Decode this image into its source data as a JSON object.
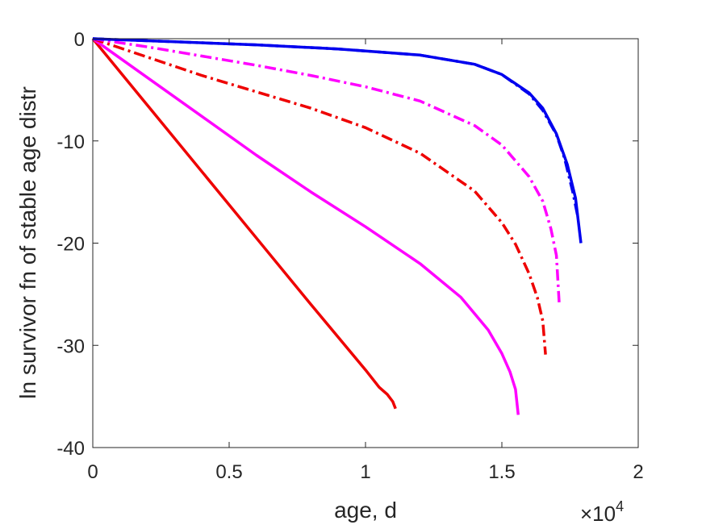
{
  "chart_data": {
    "type": "line",
    "title": "",
    "xlabel": "age, d",
    "ylabel": "ln survivor fn of stable age distr",
    "x_exponent_base": "×10",
    "x_exponent_power": "4",
    "xlim": [
      0,
      2
    ],
    "ylim": [
      -40,
      0
    ],
    "x_ticks": [
      0,
      0.5,
      1,
      1.5,
      2
    ],
    "x_tick_labels": [
      "0",
      "0.5",
      "1",
      "1.5",
      "2"
    ],
    "y_ticks": [
      0,
      -10,
      -20,
      -30,
      -40
    ],
    "y_tick_labels": [
      "0",
      "-10",
      "-20",
      "-30",
      "-40"
    ],
    "grid": false,
    "series": [
      {
        "color": "#ee0000",
        "style": "solid",
        "x": [
          0,
          0.2,
          0.4,
          0.6,
          0.8,
          1.0,
          1.05,
          1.08,
          1.1,
          1.11
        ],
        "y": [
          0,
          -6.5,
          -13.0,
          -19.5,
          -26.0,
          -32.4,
          -34.1,
          -34.8,
          -35.5,
          -36.2
        ]
      },
      {
        "color": "#ff00ff",
        "style": "solid",
        "x": [
          0,
          0.2,
          0.4,
          0.6,
          0.8,
          1.0,
          1.2,
          1.35,
          1.45,
          1.5,
          1.53,
          1.55,
          1.56
        ],
        "y": [
          0,
          -3.8,
          -7.6,
          -11.4,
          -15.0,
          -18.4,
          -22.0,
          -25.3,
          -28.5,
          -30.8,
          -32.6,
          -34.3,
          -36.8
        ]
      },
      {
        "color": "#ee0000",
        "style": "dashdot",
        "x": [
          0,
          0.2,
          0.4,
          0.6,
          0.8,
          1.0,
          1.2,
          1.4,
          1.5,
          1.55,
          1.6,
          1.63,
          1.65,
          1.66
        ],
        "y": [
          0,
          -1.8,
          -3.6,
          -5.2,
          -6.8,
          -8.7,
          -11.2,
          -14.9,
          -18.0,
          -20.1,
          -23.0,
          -25.3,
          -27.6,
          -30.9
        ]
      },
      {
        "color": "#ff00ff",
        "style": "dashdot",
        "x": [
          0,
          0.2,
          0.4,
          0.6,
          0.8,
          1.0,
          1.2,
          1.4,
          1.5,
          1.6,
          1.65,
          1.68,
          1.7,
          1.71
        ],
        "y": [
          0,
          -0.8,
          -1.7,
          -2.6,
          -3.6,
          -4.7,
          -6.1,
          -8.5,
          -10.4,
          -13.5,
          -15.9,
          -18.6,
          -21.2,
          -25.8
        ]
      },
      {
        "color": "#0000ee",
        "style": "dashdot",
        "x": [
          0,
          0.3,
          0.6,
          0.9,
          1.2,
          1.4,
          1.5,
          1.6,
          1.65,
          1.7,
          1.73,
          1.76,
          1.78
        ],
        "y": [
          0,
          -0.3,
          -0.6,
          -1.0,
          -1.6,
          -2.5,
          -3.5,
          -5.4,
          -7.0,
          -9.4,
          -11.7,
          -15.0,
          -17.6
        ]
      },
      {
        "color": "#0000ee",
        "style": "solid",
        "x": [
          0,
          0.3,
          0.6,
          0.9,
          1.2,
          1.4,
          1.5,
          1.6,
          1.65,
          1.7,
          1.74,
          1.77,
          1.79
        ],
        "y": [
          0,
          -0.3,
          -0.6,
          -1.0,
          -1.6,
          -2.5,
          -3.5,
          -5.3,
          -6.8,
          -9.3,
          -12.3,
          -15.6,
          -20.0
        ]
      }
    ]
  }
}
